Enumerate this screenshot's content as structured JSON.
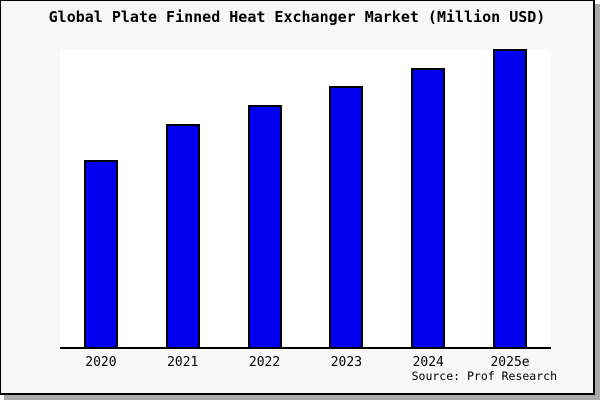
{
  "frame": {
    "background": "#f8f8f8",
    "border_color": "#000000",
    "shadow_color": "#a9a9a9"
  },
  "chart": {
    "title": "Global Plate Finned Heat Exchanger Market (Million USD)",
    "source_note": "Source: Prof Research",
    "colors": {
      "bar_fill": "#0000ee",
      "bar_edge": "#000000",
      "plot_bg": "#ffffff",
      "axis": "#000000",
      "text": "#000000"
    }
  },
  "chart_data": {
    "type": "bar",
    "title": "Global Plate Finned Heat Exchanger Market (Million USD)",
    "categories": [
      "2020",
      "2021",
      "2022",
      "2023",
      "2024",
      "2025e"
    ],
    "values": [
      62.7,
      75.0,
      81.3,
      87.7,
      93.7,
      100.0
    ],
    "values_note": "No y-axis scale shown; values are bar heights normalized to 2025e = 100",
    "xlabel": "",
    "ylabel": "",
    "ylim": [
      0,
      100
    ],
    "grid": false,
    "legend": null,
    "annotations": [
      "Source: Prof Research"
    ]
  }
}
